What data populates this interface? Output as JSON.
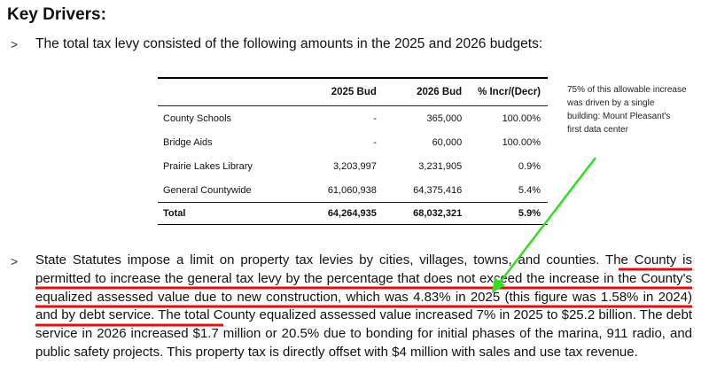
{
  "heading": "Key Drivers:",
  "bullet_symbol": ">",
  "intro_text": "The total tax levy consisted of the following amounts in the 2025 and 2026 budgets:",
  "table": {
    "headers": [
      "",
      "2025 Bud",
      "2026 Bud",
      "% Incr/(Decr)"
    ],
    "rows": [
      [
        "County Schools",
        "-",
        "365,000",
        "100.00%"
      ],
      [
        "Bridge Aids",
        "-",
        "60,000",
        "100.00%"
      ],
      [
        "Prairie Lakes Library",
        "3,203,997",
        "3,231,905",
        "0.9%"
      ],
      [
        "General Countywide",
        "61,060,938",
        "64,375,416",
        "5.4%"
      ]
    ],
    "total": [
      "Total",
      "64,264,935",
      "68,032,321",
      "5.9%"
    ]
  },
  "annotation_note": "75% of this allowable increase was driven by a single building: Mount Pleasant's first data center",
  "paragraph": {
    "part1": "State Statutes impose a limit on property tax levies by cities, villages, towns, and counties. ",
    "highlighted": "The County is permitted to increase the general tax levy by the percentage that does not exceed the increase in the County's equalized assessed value due to new construction, which was 4.83% in 2025 (this figure was 1.58% in 2024) and by debt service.",
    "part2": " The total County equalized assessed value increased 7% in 2025 to $25.2 billion. The debt service in 2026 increased $1.7 million or 20.5% due to bonding for initial phases of the marina, 911 radio, and public safety projects. This property tax is directly offset with $4 million with sales and use tax revenue."
  },
  "colors": {
    "underline": "#e01010",
    "arrow": "#33dd22"
  }
}
